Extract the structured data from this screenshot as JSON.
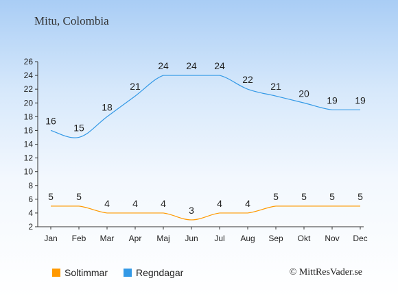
{
  "title": "Mitu, Colombia",
  "copyright": "© MittResVader.se",
  "colors": {
    "sun": "#ff9900",
    "rain": "#3399e6"
  },
  "chart_data": {
    "type": "line",
    "categories": [
      "Jan",
      "Feb",
      "Mar",
      "Apr",
      "Maj",
      "Jun",
      "Jul",
      "Aug",
      "Sep",
      "Okt",
      "Nov",
      "Dec"
    ],
    "series": [
      {
        "name": "Soltimmar",
        "values": [
          5,
          5,
          4,
          4,
          4,
          3,
          4,
          4,
          5,
          5,
          5,
          5
        ]
      },
      {
        "name": "Regndagar",
        "values": [
          16,
          15,
          18,
          21,
          24,
          24,
          24,
          22,
          21,
          20,
          19,
          19
        ]
      }
    ],
    "ylim": [
      2,
      26
    ],
    "yticks": [
      2,
      4,
      6,
      8,
      10,
      12,
      14,
      16,
      18,
      20,
      22,
      24,
      26
    ],
    "grid": false,
    "legend": "bottom-left"
  }
}
